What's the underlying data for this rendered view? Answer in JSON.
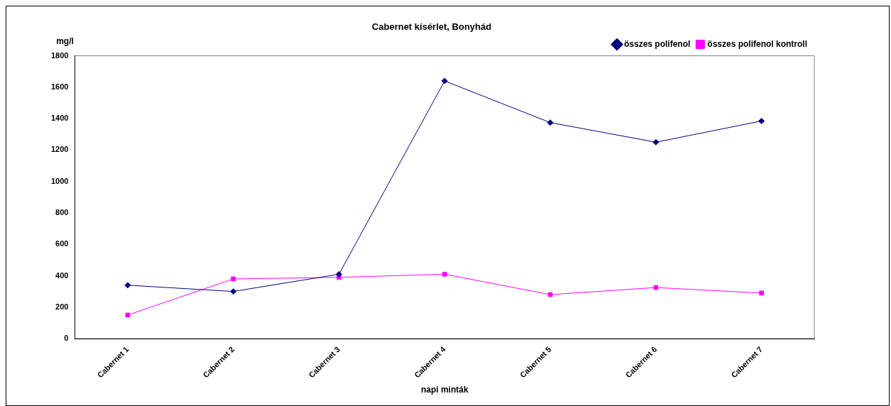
{
  "chart_data": {
    "type": "line",
    "title": "Cabernet kísérlet, Bonyhád",
    "xlabel": "napi minták",
    "ylabel": "mg/l",
    "categories": [
      "Cabernet 1",
      "Cabernet 2",
      "Cabernet 3",
      "Cabernet 4",
      "Cabernet 5",
      "Cabernet 6",
      "Cabernet 7"
    ],
    "series": [
      {
        "name": "összes polifenol",
        "color": "#000080",
        "marker": "diamond",
        "values": [
          340,
          300,
          410,
          1640,
          1375,
          1250,
          1385
        ]
      },
      {
        "name": "összes polifenol kontroll",
        "color": "#ff00ff",
        "marker": "square",
        "values": [
          150,
          380,
          390,
          410,
          280,
          325,
          290
        ]
      }
    ],
    "ylim": [
      0,
      1800
    ],
    "yticks": [
      0,
      200,
      400,
      600,
      800,
      1000,
      1200,
      1400,
      1600,
      1800
    ],
    "grid": false,
    "legend": "top right",
    "line_style": "solid"
  }
}
